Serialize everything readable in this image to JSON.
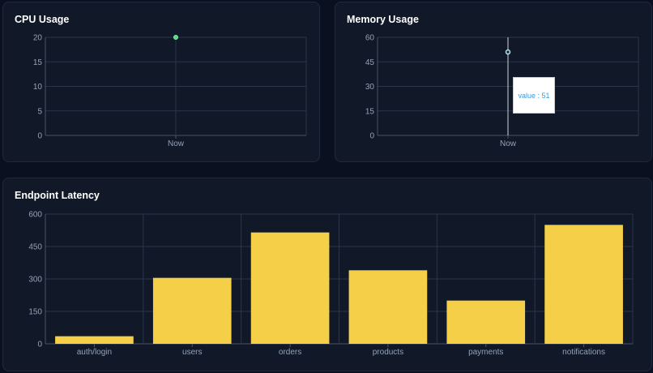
{
  "colors": {
    "grid": "#2c3648",
    "axis": "#4b5563",
    "tick_text": "#94a3b8",
    "cpu_point": "#4ade80",
    "memory_point": "#b3dff2",
    "latency_bar": "#f5cf47",
    "tooltip_text": "#3b9ad9"
  },
  "chart_data": [
    {
      "id": "cpu",
      "type": "line",
      "title": "CPU Usage",
      "categories": [
        "Now"
      ],
      "series": [
        {
          "values": [
            20
          ]
        }
      ],
      "ylim": [
        0,
        20
      ],
      "yticks": [
        0,
        5,
        10,
        15,
        20
      ],
      "grid": true
    },
    {
      "id": "memory",
      "type": "line",
      "title": "Memory Usage",
      "categories": [
        "Now"
      ],
      "series": [
        {
          "values": [
            51
          ]
        }
      ],
      "ylim": [
        0,
        60
      ],
      "yticks": [
        0,
        15,
        30,
        45,
        60
      ],
      "grid": true,
      "tooltip": {
        "label": "value",
        "value": 51,
        "text": "value : 51"
      }
    },
    {
      "id": "latency",
      "type": "bar",
      "title": "Endpoint Latency",
      "categories": [
        "auth/login",
        "users",
        "orders",
        "products",
        "payments",
        "notifications"
      ],
      "values": [
        35,
        305,
        515,
        340,
        200,
        550
      ],
      "ylim": [
        0,
        600
      ],
      "yticks": [
        0,
        150,
        300,
        450,
        600
      ],
      "grid": true
    }
  ]
}
